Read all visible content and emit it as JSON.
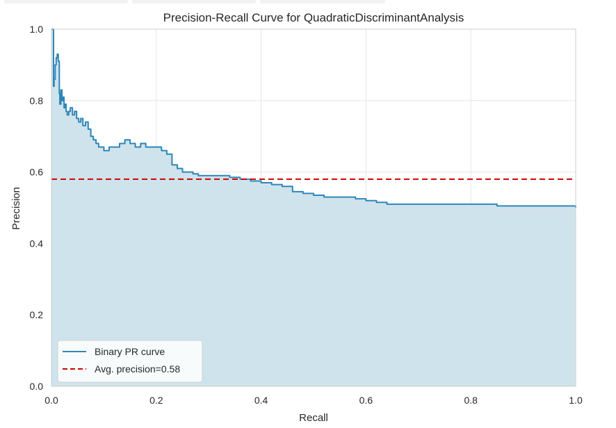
{
  "chart_data": {
    "type": "area",
    "title": "Precision-Recall Curve for QuadraticDiscriminantAnalysis",
    "xlabel": "Recall",
    "ylabel": "Precision",
    "xlim": [
      0.0,
      1.0
    ],
    "ylim": [
      0.0,
      1.0
    ],
    "xticks": [
      "0.0",
      "0.2",
      "0.4",
      "0.6",
      "0.8",
      "1.0"
    ],
    "yticks": [
      "0.0",
      "0.2",
      "0.4",
      "0.6",
      "0.8",
      "1.0"
    ],
    "grid": true,
    "legend_placement": "lower-left",
    "series": [
      {
        "name": "Binary PR curve",
        "color": "#2e86b7",
        "fill_color": "#cfe3ec",
        "x": [
          0.0,
          0.003,
          0.004,
          0.005,
          0.007,
          0.009,
          0.011,
          0.013,
          0.015,
          0.016,
          0.018,
          0.02,
          0.022,
          0.024,
          0.026,
          0.028,
          0.03,
          0.033,
          0.036,
          0.04,
          0.044,
          0.048,
          0.052,
          0.056,
          0.06,
          0.065,
          0.07,
          0.075,
          0.08,
          0.085,
          0.09,
          0.095,
          0.1,
          0.11,
          0.12,
          0.13,
          0.14,
          0.15,
          0.16,
          0.17,
          0.18,
          0.19,
          0.2,
          0.21,
          0.22,
          0.23,
          0.24,
          0.25,
          0.26,
          0.27,
          0.28,
          0.3,
          0.32,
          0.34,
          0.36,
          0.38,
          0.4,
          0.42,
          0.44,
          0.46,
          0.48,
          0.5,
          0.52,
          0.55,
          0.58,
          0.6,
          0.62,
          0.64,
          0.66,
          0.68,
          0.7,
          0.75,
          0.8,
          0.85,
          0.9,
          0.95,
          1.0
        ],
        "y": [
          1.0,
          1.0,
          0.84,
          0.86,
          0.9,
          0.92,
          0.93,
          0.91,
          0.82,
          0.79,
          0.83,
          0.8,
          0.81,
          0.78,
          0.79,
          0.77,
          0.76,
          0.77,
          0.78,
          0.76,
          0.77,
          0.75,
          0.74,
          0.75,
          0.73,
          0.74,
          0.72,
          0.7,
          0.69,
          0.68,
          0.67,
          0.67,
          0.66,
          0.67,
          0.67,
          0.68,
          0.69,
          0.68,
          0.67,
          0.68,
          0.67,
          0.67,
          0.67,
          0.66,
          0.65,
          0.62,
          0.61,
          0.6,
          0.6,
          0.595,
          0.59,
          0.59,
          0.59,
          0.585,
          0.58,
          0.575,
          0.57,
          0.565,
          0.56,
          0.545,
          0.54,
          0.535,
          0.53,
          0.53,
          0.525,
          0.52,
          0.515,
          0.51,
          0.51,
          0.51,
          0.51,
          0.51,
          0.51,
          0.505,
          0.505,
          0.505,
          0.5
        ]
      },
      {
        "name": "Avg. precision=0.58",
        "color": "#cc0000",
        "style": "dashed",
        "constant_y": 0.58
      }
    ]
  }
}
